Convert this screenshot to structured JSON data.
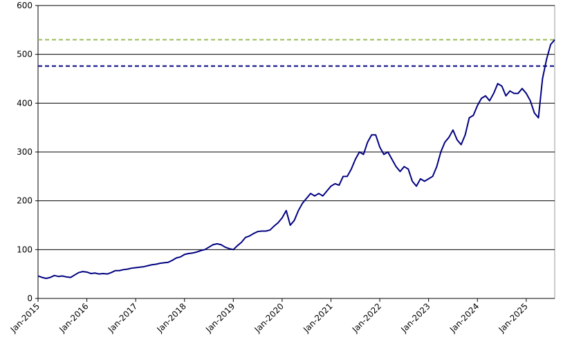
{
  "chart_data": {
    "type": "line",
    "x": [
      "2015-01",
      "2015-02",
      "2015-03",
      "2015-04",
      "2015-05",
      "2015-06",
      "2015-07",
      "2015-08",
      "2015-09",
      "2015-10",
      "2015-11",
      "2015-12",
      "2016-01",
      "2016-02",
      "2016-03",
      "2016-04",
      "2016-05",
      "2016-06",
      "2016-07",
      "2016-08",
      "2016-09",
      "2016-10",
      "2016-11",
      "2016-12",
      "2017-01",
      "2017-02",
      "2017-03",
      "2017-04",
      "2017-05",
      "2017-06",
      "2017-07",
      "2017-08",
      "2017-09",
      "2017-10",
      "2017-11",
      "2017-12",
      "2018-01",
      "2018-02",
      "2018-03",
      "2018-04",
      "2018-05",
      "2018-06",
      "2018-07",
      "2018-08",
      "2018-09",
      "2018-10",
      "2018-11",
      "2018-12",
      "2019-01",
      "2019-02",
      "2019-03",
      "2019-04",
      "2019-05",
      "2019-06",
      "2019-07",
      "2019-08",
      "2019-09",
      "2019-10",
      "2019-11",
      "2019-12",
      "2020-01",
      "2020-02",
      "2020-03",
      "2020-04",
      "2020-05",
      "2020-06",
      "2020-07",
      "2020-08",
      "2020-09",
      "2020-10",
      "2020-11",
      "2020-12",
      "2021-01",
      "2021-02",
      "2021-03",
      "2021-04",
      "2021-05",
      "2021-06",
      "2021-07",
      "2021-08",
      "2021-09",
      "2021-10",
      "2021-11",
      "2021-12",
      "2022-01",
      "2022-02",
      "2022-03",
      "2022-04",
      "2022-05",
      "2022-06",
      "2022-07",
      "2022-08",
      "2022-09",
      "2022-10",
      "2022-11",
      "2022-12",
      "2023-01",
      "2023-02",
      "2023-03",
      "2023-04",
      "2023-05",
      "2023-06",
      "2023-07",
      "2023-08",
      "2023-09",
      "2023-10",
      "2023-11",
      "2023-12",
      "2024-01",
      "2024-02",
      "2024-03",
      "2024-04",
      "2024-05",
      "2024-06",
      "2024-07",
      "2024-08",
      "2024-09",
      "2024-10",
      "2024-11",
      "2024-12",
      "2025-01",
      "2025-02",
      "2025-03",
      "2025-04",
      "2025-05",
      "2025-06",
      "2025-07",
      "2025-08"
    ],
    "series": [
      {
        "color": "#000080",
        "values": [
          46,
          43,
          41,
          43,
          47,
          45,
          46,
          44,
          43,
          48,
          53,
          55,
          54,
          51,
          52,
          50,
          51,
          50,
          53,
          57,
          57,
          59,
          60,
          62,
          63,
          64,
          65,
          67,
          69,
          70,
          72,
          73,
          74,
          78,
          83,
          85,
          90,
          92,
          93,
          95,
          98,
          100,
          105,
          110,
          112,
          110,
          105,
          102,
          100,
          108,
          115,
          125,
          128,
          133,
          137,
          138,
          138,
          140,
          148,
          155,
          165,
          180,
          150,
          160,
          180,
          195,
          205,
          215,
          210,
          215,
          210,
          220,
          230,
          235,
          232,
          250,
          250,
          265,
          285,
          300,
          295,
          320,
          335,
          335,
          310,
          295,
          300,
          285,
          270,
          260,
          270,
          265,
          240,
          230,
          245,
          240,
          245,
          250,
          270,
          300,
          320,
          330,
          345,
          325,
          315,
          335,
          370,
          375,
          395,
          410,
          415,
          405,
          420,
          440,
          435,
          415,
          425,
          420,
          420,
          430,
          420,
          405,
          380,
          370,
          450,
          490,
          520,
          530
        ]
      }
    ],
    "reference_lines": [
      {
        "value": 530,
        "color": "#9bbb59"
      },
      {
        "value": 476,
        "color": "#000080"
      }
    ],
    "xlim": [
      "2015-01",
      "2025-08"
    ],
    "xticks": [
      {
        "value": "2015-01",
        "label": "Jan-2015"
      },
      {
        "value": "2016-01",
        "label": "Jan-2016"
      },
      {
        "value": "2017-01",
        "label": "Jan-2017"
      },
      {
        "value": "2018-01",
        "label": "Jan-2018"
      },
      {
        "value": "2019-01",
        "label": "Jan-2019"
      },
      {
        "value": "2020-01",
        "label": "Jan-2020"
      },
      {
        "value": "2021-01",
        "label": "Jan-2021"
      },
      {
        "value": "2022-01",
        "label": "Jan-2022"
      },
      {
        "value": "2023-01",
        "label": "Jan-2023"
      },
      {
        "value": "2024-01",
        "label": "Jan-2024"
      },
      {
        "value": "2025-01",
        "label": "Jan-2025"
      }
    ],
    "ylim": [
      0,
      600
    ],
    "yticks": [
      0,
      100,
      200,
      300,
      400,
      500,
      600
    ],
    "grid": true
  }
}
